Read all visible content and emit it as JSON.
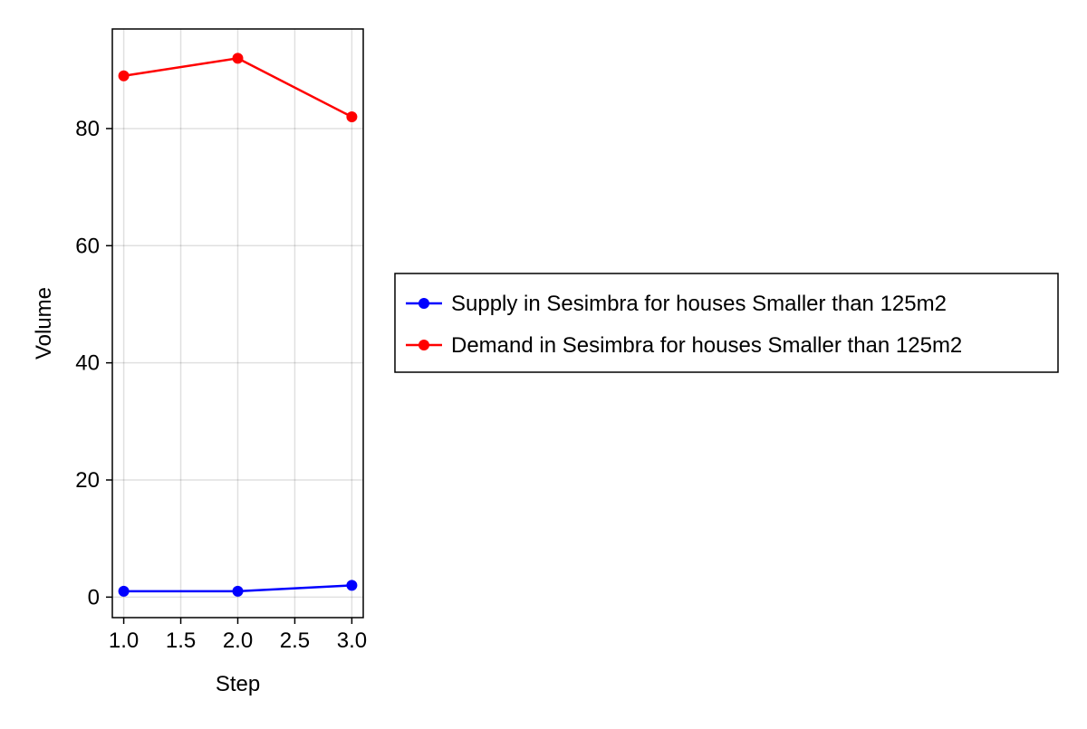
{
  "chart_data": {
    "type": "line",
    "title": "",
    "xlabel": "Step",
    "ylabel": "Volume",
    "x": [
      1,
      2,
      3
    ],
    "xlim": [
      0.9,
      3.1
    ],
    "ylim": [
      -3.5,
      97
    ],
    "xticks": [
      1.0,
      1.5,
      2.0,
      2.5,
      3.0
    ],
    "xtick_labels": [
      "1.0",
      "1.5",
      "2.0",
      "2.5",
      "3.0"
    ],
    "yticks": [
      0,
      20,
      40,
      60,
      80
    ],
    "ytick_labels": [
      "0",
      "20",
      "40",
      "60",
      "80"
    ],
    "grid": true,
    "legend_position": "outside-right",
    "series": [
      {
        "name": "Supply in Sesimbra for houses Smaller than 125m2",
        "color": "#0000ff",
        "values": [
          1,
          1,
          2
        ]
      },
      {
        "name": "Demand in Sesimbra for houses Smaller than 125m2",
        "color": "#ff0000",
        "values": [
          89,
          92,
          82
        ]
      }
    ]
  }
}
